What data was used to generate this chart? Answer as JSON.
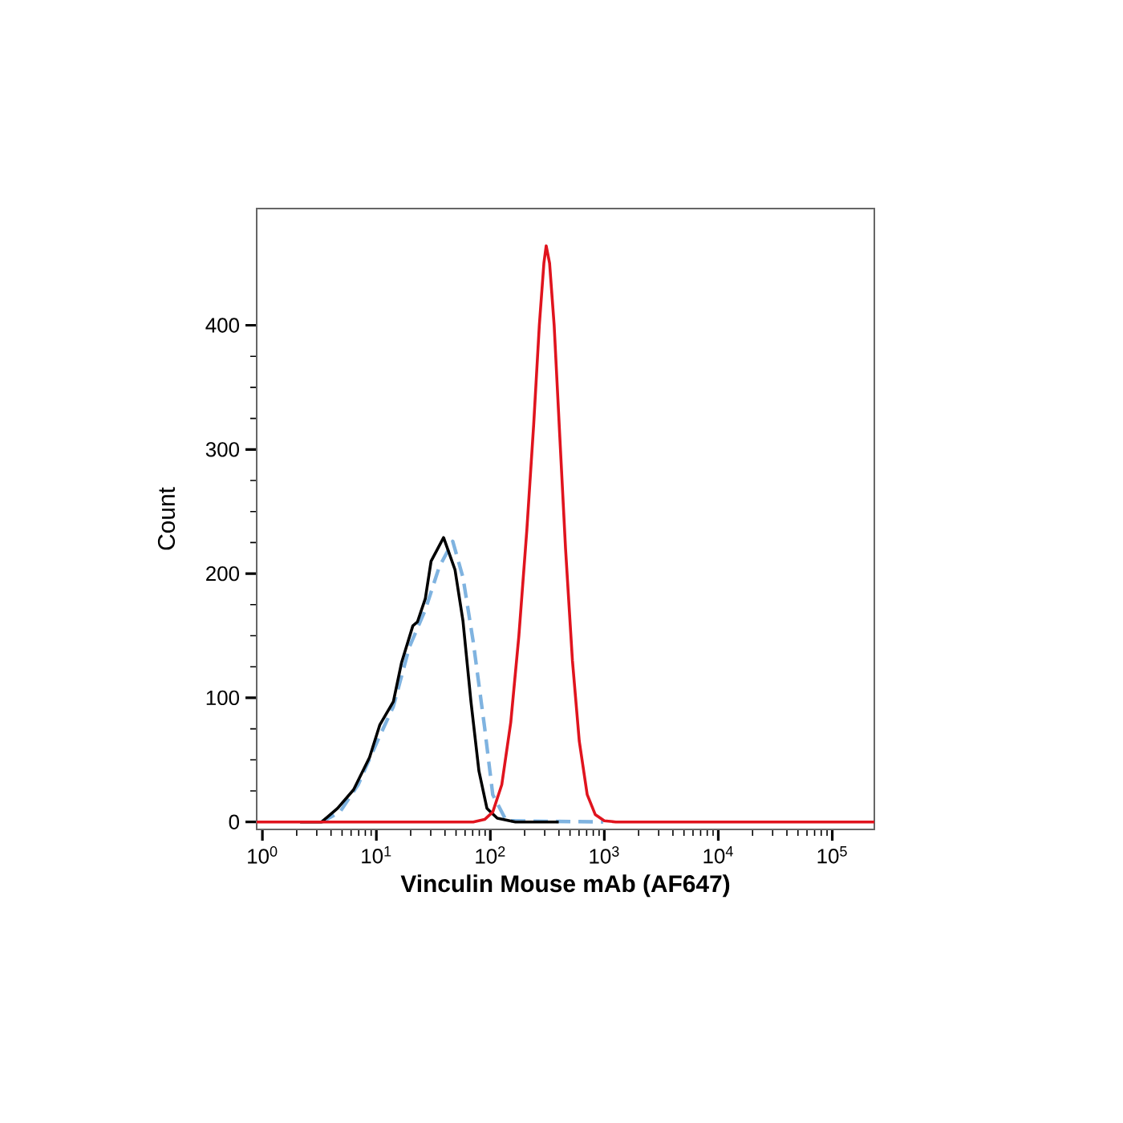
{
  "chart_data": {
    "type": "line",
    "xlabel": "Vinculin Mouse mAb (AF647)",
    "ylabel": "Count",
    "log": "x",
    "xlim": [
      0.891,
      234000
    ],
    "ylim": [
      -6,
      494
    ],
    "xticks": [
      {
        "value": 1,
        "label": "10$^{0}$"
      },
      {
        "value": 10,
        "label": "10$^{1}$"
      },
      {
        "value": 100,
        "label": "10$^{2}$"
      },
      {
        "value": 1000,
        "label": "10$^{3}$"
      },
      {
        "value": 10000,
        "label": "10$^{4}$"
      },
      {
        "value": 100000,
        "label": "10$^{5}$"
      }
    ],
    "yticks": [
      0,
      100,
      200,
      300,
      400
    ],
    "marker": "none",
    "series": [
      {
        "color": "#7fb3e0",
        "line_style": "dashed",
        "x": [
          3.31,
          4.79,
          6.92,
          10.2,
          14.1,
          19.5,
          26.9,
          35.5,
          46.8,
          57.5,
          70.8,
          89.1,
          105,
          138,
          977
        ],
        "values": [
          0,
          8,
          30,
          65,
          93,
          141,
          171,
          205,
          226,
          197,
          145,
          76,
          22,
          1,
          0
        ]
      },
      {
        "color": "#000000",
        "line_style": "solid",
        "x": [
          2.14,
          3.31,
          4.57,
          6.31,
          8.71,
          10.7,
          14.1,
          16.6,
          20.9,
          22.9,
          26.9,
          30.2,
          38.9,
          49.0,
          57.5,
          67.6,
          79.4,
          93.3,
          115,
          166,
          398
        ],
        "values": [
          0,
          0,
          11,
          26,
          52,
          78,
          97,
          128,
          158,
          161,
          180,
          210,
          229,
          203,
          162,
          97,
          41,
          11,
          3,
          0,
          0
        ]
      },
      {
        "color": "#e0141e",
        "line_style": "solid",
        "x": [
          0.891,
          70.8,
          89.1,
          105,
          126,
          151,
          178,
          209,
          240,
          269,
          295,
          309,
          331,
          363,
          407,
          457,
          525,
          603,
          708,
          832,
          1000,
          1260,
          234000
        ],
        "values": [
          0,
          0,
          2,
          8,
          30,
          80,
          150,
          235,
          320,
          400,
          450,
          464,
          450,
          400,
          310,
          220,
          130,
          65,
          22,
          6,
          1,
          0,
          0
        ]
      }
    ]
  }
}
